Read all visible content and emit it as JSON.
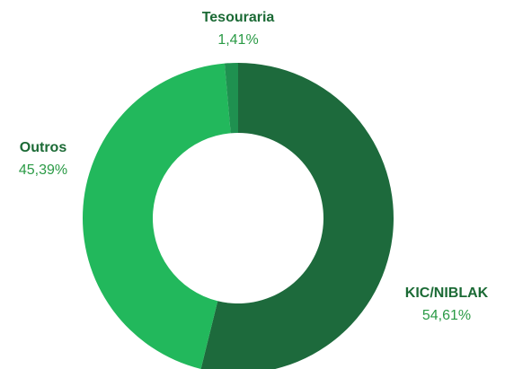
{
  "chart_data": {
    "type": "donut",
    "categories": [
      "KIC/NIBLAK",
      "Outros",
      "Tesouraria"
    ],
    "values": [
      54.61,
      45.39,
      1.41
    ],
    "value_labels": [
      "54,61%",
      "45,39%",
      "1,41%"
    ],
    "colors": [
      "#1d6a3c",
      "#22b85c",
      "#1f9150"
    ]
  }
}
